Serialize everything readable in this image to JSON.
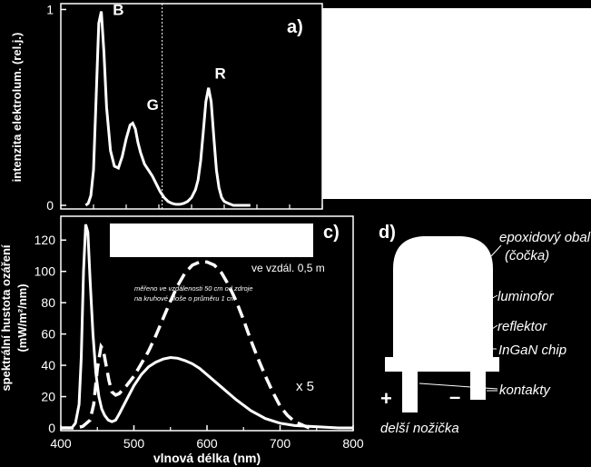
{
  "chart_data": [
    {
      "type": "line",
      "panel_label": "a)",
      "ylabel": "intenzita elektrolum. (rel.j.)",
      "xlim": [
        400,
        800
      ],
      "ylim": [
        0,
        1.03
      ],
      "yticks": [
        "0",
        "1"
      ],
      "peak_labels": [
        {
          "text": "B",
          "x": 460,
          "y": 1.0
        },
        {
          "text": "G",
          "x": 512,
          "y": 0.44
        },
        {
          "text": "R",
          "x": 627,
          "y": 0.6
        }
      ],
      "reference_line_x": 555,
      "series": [
        {
          "x": [
            438,
            442,
            446,
            450,
            454,
            458,
            462,
            466,
            470,
            476,
            482,
            488,
            494,
            500,
            506,
            510,
            514,
            518,
            522,
            528,
            534,
            540,
            546,
            552,
            558,
            564,
            570,
            576,
            582,
            588,
            594,
            600,
            606,
            610,
            614,
            618,
            622,
            626,
            630,
            634,
            638,
            642,
            646,
            650,
            656,
            664,
            676,
            690
          ],
          "y": [
            0.0,
            0.01,
            0.05,
            0.18,
            0.55,
            0.93,
            0.99,
            0.78,
            0.5,
            0.28,
            0.2,
            0.19,
            0.25,
            0.34,
            0.41,
            0.42,
            0.39,
            0.32,
            0.27,
            0.21,
            0.18,
            0.15,
            0.11,
            0.07,
            0.04,
            0.02,
            0.01,
            0.005,
            0.005,
            0.01,
            0.02,
            0.04,
            0.08,
            0.13,
            0.23,
            0.38,
            0.53,
            0.6,
            0.53,
            0.35,
            0.18,
            0.09,
            0.04,
            0.02,
            0.01,
            0.0,
            0.0,
            0.0
          ]
        }
      ]
    },
    {
      "type": "line",
      "panel_label": "c)",
      "ylabel_line1": "spektrální hustota ozáření",
      "ylabel_line2": "(mW/m²/nm)",
      "xlabel": "vlnová délka (nm)",
      "xlim": [
        400,
        800
      ],
      "ylim": [
        0,
        130
      ],
      "xticks": [
        "400",
        "500",
        "600",
        "700",
        "800"
      ],
      "yticks": [
        "0",
        "20",
        "40",
        "60",
        "80",
        "100",
        "120"
      ],
      "annotations": {
        "distance": "ve vzdál. 0,5 m",
        "note_line1": "měřeno ve vzdálenosti 50 cm od zdroje",
        "note_line2": "na kruhové ploše o průměru 1 cm",
        "scale": "x 5"
      },
      "series": [
        {
          "style": "solid",
          "x": [
            400,
            415,
            420,
            425,
            428,
            431,
            434,
            437,
            440,
            444,
            448,
            452,
            456,
            460,
            465,
            470,
            475,
            480,
            490,
            500,
            510,
            520,
            530,
            540,
            550,
            560,
            570,
            580,
            590,
            600,
            620,
            640,
            660,
            680,
            700,
            720,
            740,
            760,
            780,
            800
          ],
          "y": [
            0,
            0,
            3,
            15,
            45,
            100,
            130,
            125,
            95,
            60,
            35,
            20,
            12,
            8,
            5,
            4,
            5,
            9,
            18,
            27,
            34,
            39,
            42,
            44,
            45,
            44.5,
            43,
            41,
            38,
            34,
            26,
            18,
            11,
            6,
            3,
            1.5,
            1,
            0.5,
            0,
            0
          ]
        },
        {
          "style": "dashed",
          "x": [
            400,
            420,
            430,
            440,
            445,
            450,
            455,
            458,
            462,
            466,
            470,
            475,
            480,
            490,
            500,
            510,
            520,
            530,
            540,
            550,
            560,
            570,
            580,
            590,
            600,
            610,
            620,
            630,
            640,
            650,
            660,
            670,
            680,
            690,
            700,
            710,
            720,
            730,
            740
          ],
          "y": [
            0,
            0,
            1,
            5,
            15,
            38,
            52,
            50,
            40,
            30,
            23,
            21,
            22,
            27,
            33,
            41,
            49,
            59,
            70,
            81,
            91,
            99,
            104,
            106,
            106,
            104,
            99,
            91,
            81,
            69,
            56,
            44,
            33,
            23,
            14,
            8,
            4,
            2,
            0
          ]
        }
      ]
    }
  ],
  "diagram": {
    "panel_label": "d)",
    "labels": {
      "lens": "epoxidový obal",
      "lens_sub": "(čočka)",
      "phosphor": "luminofor",
      "reflector": "reflektor",
      "chip": "InGaN chip",
      "contacts": "kontakty",
      "plus": "+",
      "minus": "–",
      "longer_leg": "delší nožička"
    }
  }
}
